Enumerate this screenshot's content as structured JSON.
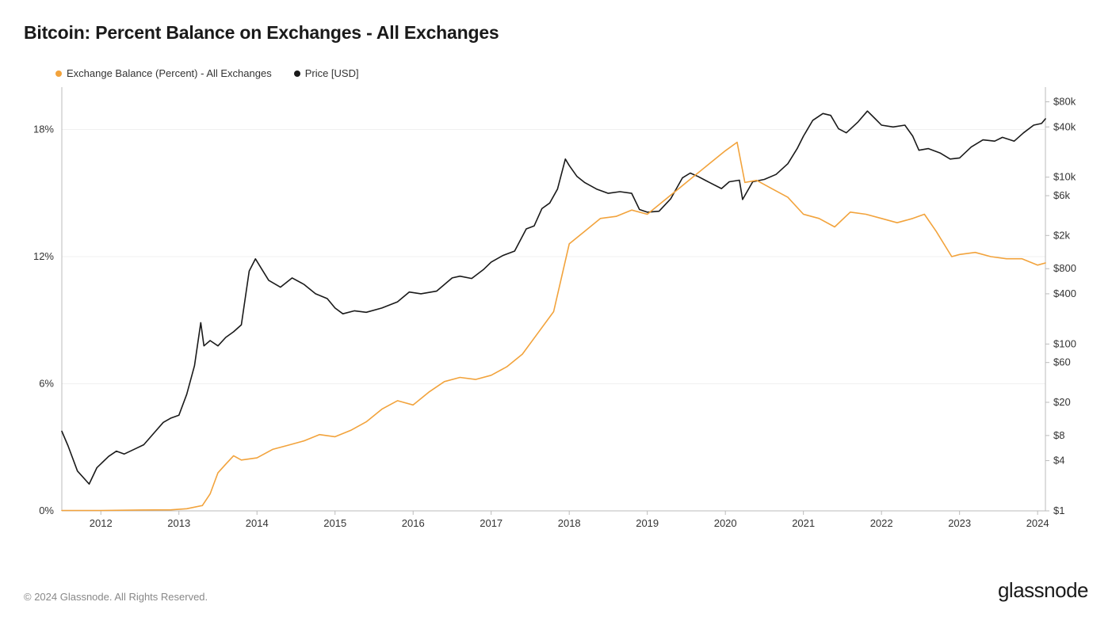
{
  "title": "Bitcoin: Percent Balance on Exchanges - All Exchanges",
  "legend": {
    "series1": {
      "label": "Exchange Balance (Percent) - All Exchanges",
      "color": "#f2a33c"
    },
    "series2": {
      "label": "Price [USD]",
      "color": "#1a1a1a"
    }
  },
  "chart": {
    "type": "line",
    "background_color": "#ffffff",
    "grid_color": "#f0f0f0",
    "axis_color": "#bbbbbb",
    "x": {
      "min": 2011.5,
      "max": 2024.1,
      "ticks": [
        2012,
        2013,
        2014,
        2015,
        2016,
        2017,
        2018,
        2019,
        2020,
        2021,
        2022,
        2023,
        2024
      ],
      "tick_labels": [
        "2012",
        "2013",
        "2014",
        "2015",
        "2016",
        "2017",
        "2018",
        "2019",
        "2020",
        "2021",
        "2022",
        "2023",
        "2024"
      ],
      "label_fontsize": 13
    },
    "y_left": {
      "min": 0,
      "max": 20,
      "ticks": [
        0,
        6,
        12,
        18
      ],
      "tick_labels": [
        "0%",
        "6%",
        "12%",
        "18%"
      ],
      "label_fontsize": 13
    },
    "y_right": {
      "scale": "log",
      "min": 1,
      "max": 120000,
      "ticks": [
        1,
        4,
        8,
        20,
        60,
        100,
        400,
        800,
        2000,
        6000,
        10000,
        40000,
        80000
      ],
      "tick_labels": [
        "$1",
        "$4",
        "$8",
        "$20",
        "$60",
        "$100",
        "$400",
        "$800",
        "$2k",
        "$6k",
        "$10k",
        "$40k",
        "$80k"
      ],
      "label_fontsize": 13
    },
    "series_balance": {
      "color": "#f2a33c",
      "line_width": 1.6,
      "data": [
        [
          2011.5,
          0.02
        ],
        [
          2012.0,
          0.02
        ],
        [
          2012.5,
          0.04
        ],
        [
          2012.9,
          0.05
        ],
        [
          2013.1,
          0.1
        ],
        [
          2013.3,
          0.25
        ],
        [
          2013.4,
          0.8
        ],
        [
          2013.5,
          1.8
        ],
        [
          2013.6,
          2.2
        ],
        [
          2013.7,
          2.6
        ],
        [
          2013.8,
          2.4
        ],
        [
          2014.0,
          2.5
        ],
        [
          2014.2,
          2.9
        ],
        [
          2014.4,
          3.1
        ],
        [
          2014.6,
          3.3
        ],
        [
          2014.8,
          3.6
        ],
        [
          2015.0,
          3.5
        ],
        [
          2015.2,
          3.8
        ],
        [
          2015.4,
          4.2
        ],
        [
          2015.6,
          4.8
        ],
        [
          2015.8,
          5.2
        ],
        [
          2016.0,
          5.0
        ],
        [
          2016.2,
          5.6
        ],
        [
          2016.4,
          6.1
        ],
        [
          2016.6,
          6.3
        ],
        [
          2016.8,
          6.2
        ],
        [
          2017.0,
          6.4
        ],
        [
          2017.2,
          6.8
        ],
        [
          2017.4,
          7.4
        ],
        [
          2017.6,
          8.4
        ],
        [
          2017.8,
          9.4
        ],
        [
          2018.0,
          12.6
        ],
        [
          2018.2,
          13.2
        ],
        [
          2018.4,
          13.8
        ],
        [
          2018.6,
          13.9
        ],
        [
          2018.8,
          14.2
        ],
        [
          2019.0,
          14.0
        ],
        [
          2019.2,
          14.6
        ],
        [
          2019.4,
          15.2
        ],
        [
          2019.6,
          15.8
        ],
        [
          2019.8,
          16.4
        ],
        [
          2020.0,
          17.0
        ],
        [
          2020.15,
          17.4
        ],
        [
          2020.25,
          15.5
        ],
        [
          2020.4,
          15.6
        ],
        [
          2020.6,
          15.2
        ],
        [
          2020.8,
          14.8
        ],
        [
          2021.0,
          14.0
        ],
        [
          2021.2,
          13.8
        ],
        [
          2021.4,
          13.4
        ],
        [
          2021.6,
          14.1
        ],
        [
          2021.8,
          14.0
        ],
        [
          2022.0,
          13.8
        ],
        [
          2022.2,
          13.6
        ],
        [
          2022.4,
          13.8
        ],
        [
          2022.55,
          14.0
        ],
        [
          2022.7,
          13.2
        ],
        [
          2022.9,
          12.0
        ],
        [
          2023.0,
          12.1
        ],
        [
          2023.2,
          12.2
        ],
        [
          2023.4,
          12.0
        ],
        [
          2023.6,
          11.9
        ],
        [
          2023.8,
          11.9
        ],
        [
          2024.0,
          11.6
        ],
        [
          2024.1,
          11.7
        ]
      ]
    },
    "series_price": {
      "color": "#1a1a1a",
      "line_width": 1.6,
      "data": [
        [
          2011.5,
          9
        ],
        [
          2011.58,
          6
        ],
        [
          2011.7,
          3
        ],
        [
          2011.85,
          2.1
        ],
        [
          2011.95,
          3.3
        ],
        [
          2012.1,
          4.5
        ],
        [
          2012.2,
          5.2
        ],
        [
          2012.3,
          4.8
        ],
        [
          2012.45,
          5.6
        ],
        [
          2012.55,
          6.2
        ],
        [
          2012.7,
          9
        ],
        [
          2012.8,
          11.5
        ],
        [
          2012.9,
          13
        ],
        [
          2013.0,
          14
        ],
        [
          2013.1,
          25
        ],
        [
          2013.2,
          55
        ],
        [
          2013.28,
          180
        ],
        [
          2013.32,
          95
        ],
        [
          2013.4,
          110
        ],
        [
          2013.5,
          95
        ],
        [
          2013.6,
          120
        ],
        [
          2013.7,
          140
        ],
        [
          2013.8,
          170
        ],
        [
          2013.9,
          750
        ],
        [
          2013.98,
          1050
        ],
        [
          2014.05,
          820
        ],
        [
          2014.15,
          580
        ],
        [
          2014.3,
          480
        ],
        [
          2014.45,
          620
        ],
        [
          2014.6,
          520
        ],
        [
          2014.75,
          400
        ],
        [
          2014.9,
          350
        ],
        [
          2015.0,
          270
        ],
        [
          2015.1,
          230
        ],
        [
          2015.25,
          250
        ],
        [
          2015.4,
          240
        ],
        [
          2015.6,
          270
        ],
        [
          2015.8,
          320
        ],
        [
          2015.95,
          420
        ],
        [
          2016.1,
          400
        ],
        [
          2016.3,
          430
        ],
        [
          2016.5,
          620
        ],
        [
          2016.6,
          650
        ],
        [
          2016.75,
          610
        ],
        [
          2016.9,
          780
        ],
        [
          2017.0,
          960
        ],
        [
          2017.15,
          1150
        ],
        [
          2017.3,
          1300
        ],
        [
          2017.45,
          2400
        ],
        [
          2017.55,
          2600
        ],
        [
          2017.65,
          4200
        ],
        [
          2017.75,
          4900
        ],
        [
          2017.85,
          7200
        ],
        [
          2017.95,
          16500
        ],
        [
          2018.0,
          13800
        ],
        [
          2018.1,
          10200
        ],
        [
          2018.2,
          8600
        ],
        [
          2018.35,
          7200
        ],
        [
          2018.5,
          6400
        ],
        [
          2018.65,
          6700
        ],
        [
          2018.8,
          6400
        ],
        [
          2018.9,
          4100
        ],
        [
          2019.0,
          3800
        ],
        [
          2019.15,
          3900
        ],
        [
          2019.3,
          5500
        ],
        [
          2019.45,
          9800
        ],
        [
          2019.55,
          11200
        ],
        [
          2019.65,
          10200
        ],
        [
          2019.8,
          8600
        ],
        [
          2019.95,
          7300
        ],
        [
          2020.05,
          8800
        ],
        [
          2020.18,
          9200
        ],
        [
          2020.22,
          5400
        ],
        [
          2020.35,
          8800
        ],
        [
          2020.5,
          9400
        ],
        [
          2020.65,
          10800
        ],
        [
          2020.8,
          14500
        ],
        [
          2020.92,
          22000
        ],
        [
          2021.0,
          31000
        ],
        [
          2021.12,
          48000
        ],
        [
          2021.25,
          58000
        ],
        [
          2021.35,
          55000
        ],
        [
          2021.45,
          38000
        ],
        [
          2021.55,
          34000
        ],
        [
          2021.7,
          46000
        ],
        [
          2021.82,
          62000
        ],
        [
          2021.92,
          50000
        ],
        [
          2022.0,
          42000
        ],
        [
          2022.15,
          40000
        ],
        [
          2022.3,
          42000
        ],
        [
          2022.4,
          31000
        ],
        [
          2022.48,
          21000
        ],
        [
          2022.6,
          22000
        ],
        [
          2022.75,
          19500
        ],
        [
          2022.88,
          16500
        ],
        [
          2023.0,
          17000
        ],
        [
          2023.15,
          23000
        ],
        [
          2023.3,
          28000
        ],
        [
          2023.45,
          27000
        ],
        [
          2023.55,
          30000
        ],
        [
          2023.7,
          27000
        ],
        [
          2023.82,
          34000
        ],
        [
          2023.95,
          42000
        ],
        [
          2024.05,
          44000
        ],
        [
          2024.1,
          50000
        ]
      ]
    }
  },
  "footer": {
    "copyright": "© 2024 Glassnode. All Rights Reserved.",
    "brand": "glassnode"
  }
}
